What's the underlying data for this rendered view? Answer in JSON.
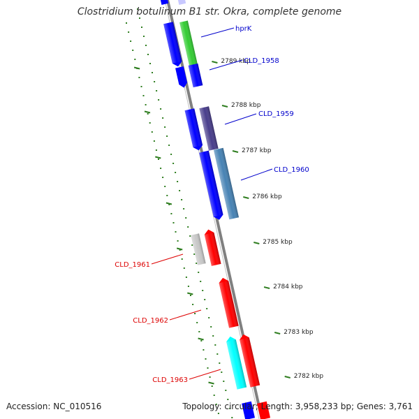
{
  "title": "Clostridium botulinum B1 str. Okra, complete genome",
  "footer": {
    "accession": "Accession: NC_010516",
    "summary": "Topology: circular; Length: 3,958,233 bp; Genes: 3,761"
  },
  "colors": {
    "backbone": "#808080",
    "tick": "#2e7d1f",
    "tick_label": "#222222",
    "forward_label": "#0000cc",
    "reverse_label": "#dd0000"
  },
  "ticks": [
    "2789 kbp",
    "2788 kbp",
    "2787 kbp",
    "2786 kbp",
    "2785 kbp",
    "2784 kbp",
    "2783 kbp",
    "2782 kbp"
  ],
  "genes": [
    {
      "label": "hprK",
      "strand": "forward",
      "color": "#0000ff"
    },
    {
      "label": "CLD_1958",
      "strand": "forward",
      "color": "#0000ff"
    },
    {
      "label": "CLD_1959",
      "strand": "forward",
      "color": "#483d8b"
    },
    {
      "label": "CLD_1960",
      "strand": "forward",
      "color": "#4682b4"
    },
    {
      "label": "CLD_1961",
      "strand": "reverse",
      "color": "#ff0000"
    },
    {
      "label": "CLD_1962",
      "strand": "reverse",
      "color": "#ff0000"
    },
    {
      "label": "CLD_1963",
      "strand": "reverse",
      "color": "#ff0000"
    }
  ]
}
